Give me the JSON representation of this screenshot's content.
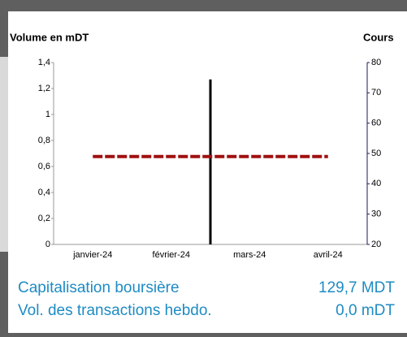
{
  "chart_data": {
    "type": "bar-line",
    "y_axis_title": "Volume en mDT",
    "y2_axis_title": "Cours",
    "categories": [
      "janvier-24",
      "février-24",
      "mars-24",
      "avril-24"
    ],
    "series": [
      {
        "name": "Volume",
        "type": "bar",
        "color": "#000000",
        "values": [
          null,
          1.27,
          null,
          null
        ]
      },
      {
        "name": "Cours",
        "type": "line",
        "axis": "y2",
        "color": "#a01010",
        "dashed": true,
        "values": [
          49,
          49,
          49,
          49
        ]
      }
    ],
    "ylim": [
      0,
      1.4
    ],
    "yticks": [
      0,
      {
        "value": 0.2,
        "label": "0,2"
      },
      {
        "value": 0.4,
        "label": "0,4"
      },
      {
        "value": 0.6,
        "label": "0,6"
      },
      {
        "value": 0.8,
        "label": "0,8"
      },
      1,
      {
        "value": 1.2,
        "label": "1,2"
      },
      {
        "value": 1.4,
        "label": "1,4"
      }
    ],
    "y2lim": [
      20,
      80
    ],
    "y2ticks": [
      20,
      30,
      40,
      50,
      60,
      70,
      80
    ],
    "stats": [
      {
        "label": "Capitalisation boursière",
        "value": "129,7 MDT"
      },
      {
        "label": "Vol. des transactions hebdo.",
        "value": "0,0 mDT"
      }
    ]
  }
}
